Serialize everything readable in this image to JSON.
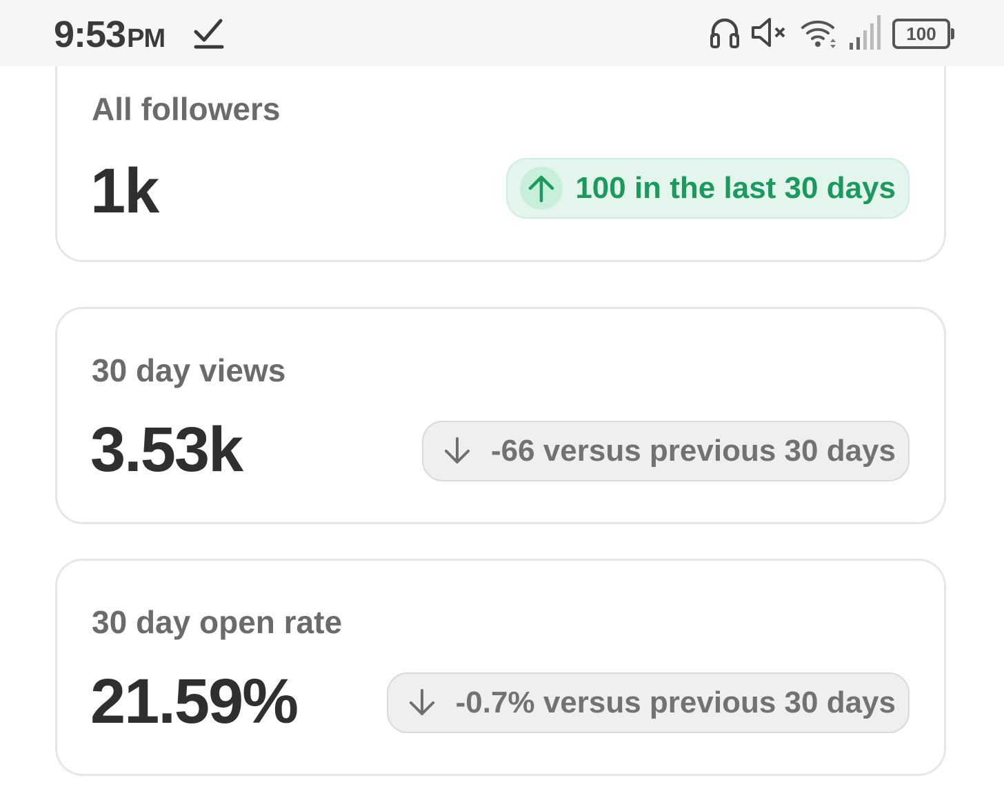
{
  "status_bar": {
    "time": "9:53",
    "ampm": "PM",
    "battery": "100",
    "icons": [
      "download-done-icon",
      "headphones-icon",
      "volume-muted-icon",
      "wifi-icon",
      "signal-icon",
      "battery-icon"
    ]
  },
  "cards": [
    {
      "label": "All followers",
      "value": "1k",
      "badge": {
        "text": "100 in the last 30 days",
        "direction": "up",
        "icon": "arrow-up-icon"
      }
    },
    {
      "label": "30 day views",
      "value": "3.53k",
      "badge": {
        "text": "-66 versus previous 30 days",
        "direction": "down",
        "icon": "arrow-down-icon"
      }
    },
    {
      "label": "30 day open rate",
      "value": "21.59%",
      "badge": {
        "text": "-0.7% versus previous 30 days",
        "direction": "down",
        "icon": "arrow-down-icon"
      }
    }
  ],
  "colors": {
    "positive_text": "#1a9a5c",
    "positive_bg": "#e3f5ec",
    "neutral_text": "#727272",
    "neutral_bg": "#efefef",
    "value_text": "#2f2f2f",
    "label_text": "#6b6b6b"
  }
}
